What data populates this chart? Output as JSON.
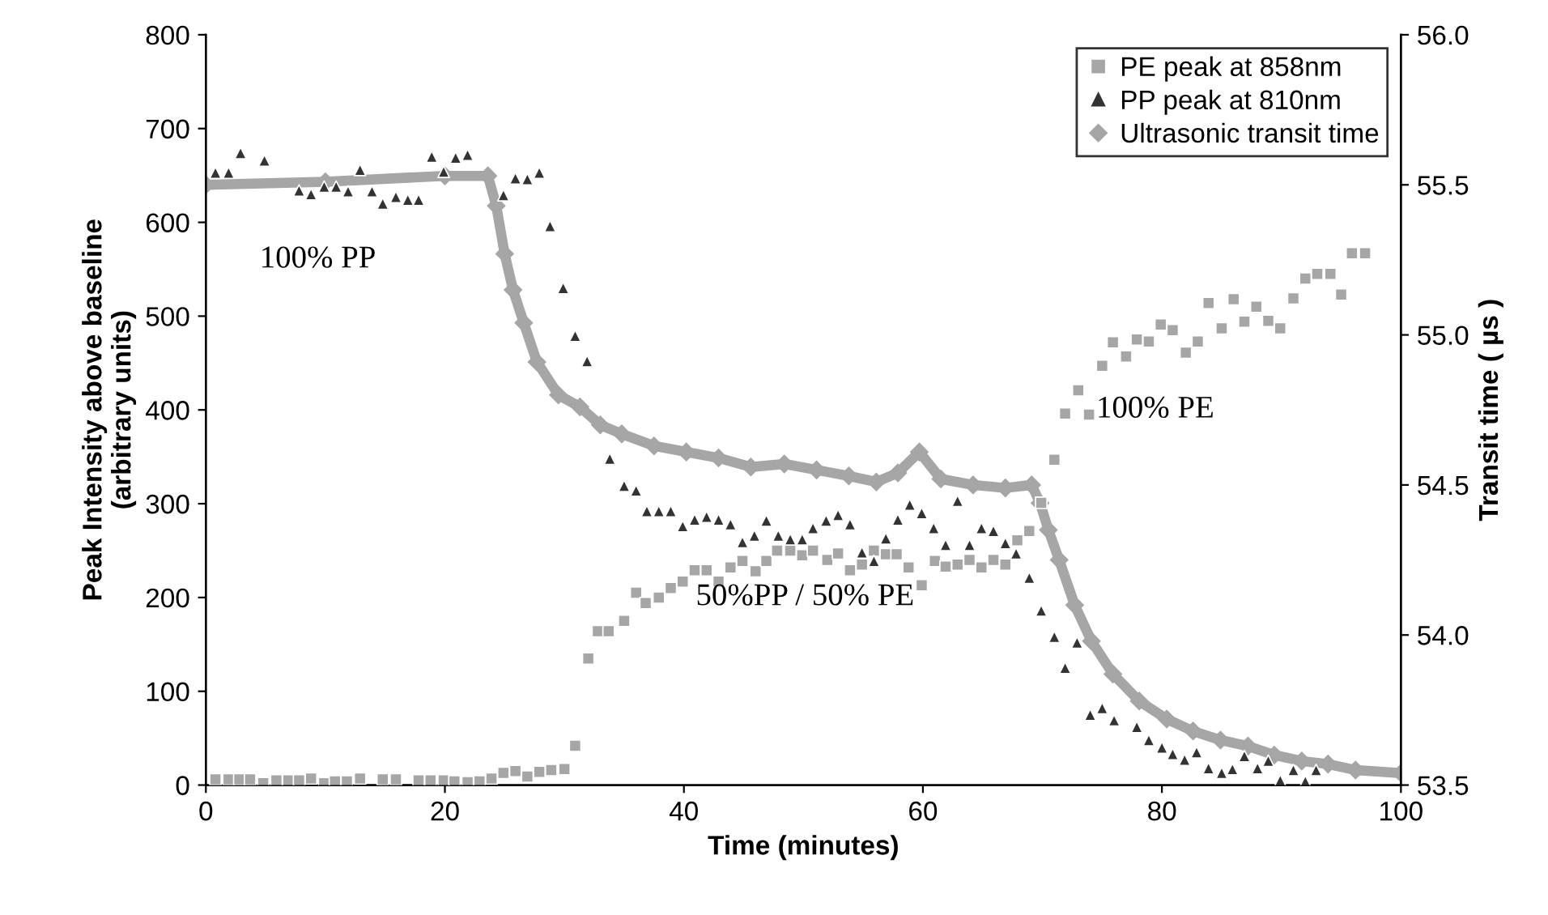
{
  "chart_data": {
    "type": "scatter",
    "xlabel": "Time (minutes)",
    "ylabel": "Peak Intensity above baseline\n(arbitrary units)",
    "y2label": "Transit time ( µs )",
    "xlim": [
      0,
      100
    ],
    "xticks": [
      0,
      20,
      40,
      60,
      80,
      100
    ],
    "ylim": [
      0,
      800
    ],
    "yticks": [
      0,
      100,
      200,
      300,
      400,
      500,
      600,
      700,
      800
    ],
    "y2lim": [
      53.5,
      56.0
    ],
    "y2ticks": [
      {
        "value": 53.5,
        "label": "53.5"
      },
      {
        "value": 54.0,
        "label": "54.0"
      },
      {
        "value": 54.5,
        "label": "54.5"
      },
      {
        "value": 55.0,
        "label": "55.0"
      },
      {
        "value": 55.5,
        "label": "55.5"
      },
      {
        "value": 56.0,
        "label": "56.0"
      }
    ],
    "grid": false,
    "legend": "top right",
    "annotations": [
      "100% PP",
      "50%PP / 50% PE",
      "100% PE"
    ],
    "series": [
      {
        "name": "PE peak at 858nm",
        "marker": "square",
        "color": "#a6a6a6",
        "x": [
          0.8,
          1.9,
          2.8,
          3.7,
          4.8,
          5.9,
          6.9,
          7.8,
          8.8,
          9.9,
          10.8,
          11.8,
          12.9,
          14.8,
          15.9,
          17.8,
          18.8,
          19.9,
          20.8,
          21.9,
          22.9,
          23.9,
          24.9,
          25.9,
          26.9,
          27.9,
          28.9,
          30.0,
          30.9,
          32.0,
          32.8,
          33.7,
          35.0,
          36.0,
          36.8,
          37.9,
          38.9,
          39.9,
          40.9,
          41.9,
          42.9,
          43.9,
          44.9,
          46.0,
          46.9,
          47.8,
          48.9,
          49.9,
          50.8,
          52.0,
          52.9,
          53.9,
          54.9,
          55.9,
          56.9,
          57.8,
          58.8,
          59.9,
          61.0,
          61.9,
          62.9,
          63.9,
          64.9,
          65.9,
          66.9,
          67.9,
          68.9,
          69.9,
          71.0,
          71.9,
          73.0,
          73.9,
          75.0,
          75.9,
          77.0,
          77.9,
          78.9,
          79.9,
          80.9,
          82.0,
          83.0,
          83.9,
          85.0,
          86.0,
          86.9,
          87.9,
          88.9,
          89.9,
          91.0,
          92.0,
          93.0,
          94.1,
          95.0,
          95.9,
          97.0
        ],
        "values": [
          6,
          6,
          6,
          6,
          2,
          5,
          5,
          5,
          7,
          2,
          4,
          4,
          7,
          6,
          6,
          5,
          5,
          5,
          4,
          3,
          4,
          7,
          13,
          15,
          9,
          14,
          16,
          17,
          42,
          135,
          164,
          164,
          175,
          205,
          194,
          200,
          210,
          217,
          229,
          229,
          217,
          232,
          239,
          228,
          239,
          250,
          250,
          245,
          250,
          240,
          247,
          229,
          235,
          250,
          246,
          246,
          232,
          213,
          239,
          233,
          235,
          240,
          232,
          240,
          235,
          261,
          271,
          301,
          347,
          396,
          421,
          395,
          447,
          472,
          457,
          475,
          473,
          491,
          485,
          461,
          473,
          514,
          487,
          518,
          494,
          510,
          495,
          487,
          519,
          540,
          545,
          545,
          523,
          567,
          567
        ]
      },
      {
        "name": "PP peak at 810nm",
        "marker": "triangle",
        "color": "#333333",
        "x": [
          0.8,
          1.9,
          2.9,
          4.9,
          7.8,
          8.8,
          9.9,
          10.9,
          11.9,
          12.9,
          13.9,
          14.8,
          15.9,
          16.9,
          17.8,
          18.9,
          19.9,
          20.9,
          21.9,
          24.9,
          25.9,
          26.9,
          27.9,
          28.8,
          29.9,
          30.9,
          31.9,
          33.8,
          35.0,
          36.0,
          36.9,
          37.9,
          38.9,
          39.9,
          40.9,
          41.9,
          42.9,
          43.9,
          44.9,
          45.9,
          46.9,
          47.9,
          48.9,
          49.9,
          50.8,
          51.9,
          52.9,
          53.9,
          54.9,
          55.9,
          56.9,
          57.9,
          58.9,
          59.9,
          60.9,
          61.9,
          62.9,
          63.9,
          64.9,
          65.9,
          66.9,
          67.8,
          68.9,
          69.9,
          71.0,
          71.9,
          72.9,
          74.0,
          75.0,
          76.0,
          77.9,
          78.9,
          80.0,
          80.9,
          81.9,
          82.9,
          83.9,
          85.0,
          85.9,
          86.9,
          88.0,
          88.9,
          89.9,
          91.0,
          92.0,
          92.9
        ],
        "values": [
          653,
          653,
          674,
          666,
          634,
          630,
          638,
          638,
          633,
          656,
          633,
          620,
          627,
          624,
          624,
          670,
          654,
          669,
          672,
          629,
          647,
          646,
          653,
          596,
          530,
          479,
          452,
          348,
          319,
          314,
          292,
          292,
          292,
          276,
          283,
          286,
          283,
          278,
          259,
          266,
          282,
          266,
          262,
          262,
          274,
          282,
          288,
          278,
          248,
          239,
          263,
          283,
          299,
          290,
          274,
          256,
          303,
          256,
          274,
          271,
          258,
          247,
          221,
          186,
          158,
          125,
          152,
          75,
          82,
          69,
          62,
          48,
          40,
          33,
          27,
          35,
          18,
          13,
          17,
          31,
          18,
          26,
          5,
          16,
          4,
          16
        ]
      },
      {
        "name": "Ultrasonic transit time",
        "type": "line",
        "axis": "y2",
        "marker": "diamond",
        "color": "#a6a6a6",
        "x": [
          0,
          10,
          20,
          23.6,
          24.3,
          25.0,
          25.7,
          26.6,
          27.7,
          29.5,
          31.3,
          33.0,
          34.8,
          37.5,
          40.2,
          42.9,
          45.6,
          48.4,
          51.1,
          53.8,
          56.1,
          57.9,
          59.7,
          61.5,
          64.2,
          66.9,
          69.1,
          69.8,
          70.5,
          71.4,
          72.7,
          74.1,
          75.9,
          78.1,
          80.4,
          82.6,
          84.9,
          87.2,
          89.4,
          91.7,
          93.9,
          96.2,
          100
        ],
        "values": [
          55.5,
          55.51,
          55.53,
          55.53,
          55.43,
          55.27,
          55.15,
          55.04,
          54.91,
          54.8,
          54.76,
          54.7,
          54.67,
          54.63,
          54.61,
          54.59,
          54.56,
          54.57,
          54.55,
          54.53,
          54.51,
          54.54,
          54.61,
          54.52,
          54.5,
          54.49,
          54.5,
          54.44,
          54.35,
          54.25,
          54.1,
          53.98,
          53.87,
          53.78,
          53.72,
          53.68,
          53.65,
          53.63,
          53.6,
          53.58,
          53.57,
          53.55,
          53.54
        ]
      }
    ]
  }
}
